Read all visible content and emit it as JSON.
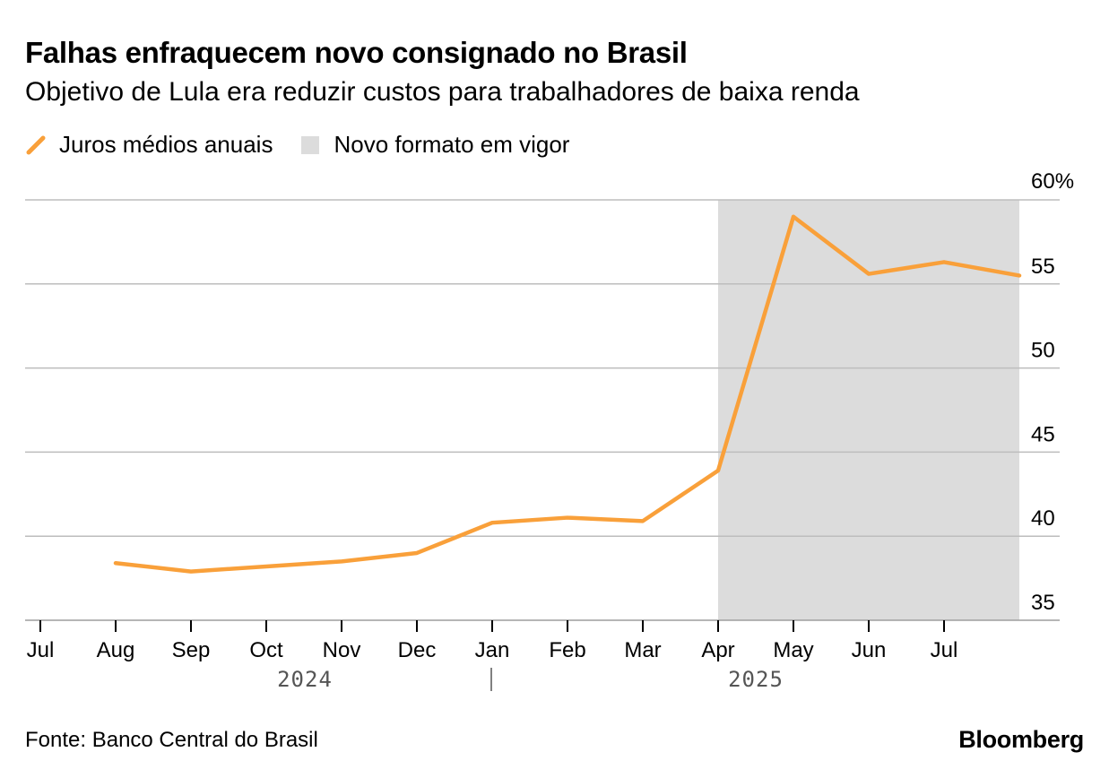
{
  "header": {
    "title": "Falhas enfraquecem novo consignado no Brasil",
    "subtitle": "Objetivo de Lula era reduzir custos para trabalhadores de baixa renda"
  },
  "legend": {
    "line_label": "Juros médios anuais",
    "shade_label": "Novo formato em vigor"
  },
  "footer": {
    "source": "Fonte: Banco Central do Brasil",
    "brand": "Bloomberg"
  },
  "colors": {
    "line": "#f9a03a",
    "shade": "#dcdcdc",
    "grid": "#bdbdbd"
  },
  "chart_data": {
    "type": "line",
    "title": "Falhas enfraquecem novo consignado no Brasil",
    "subtitle": "Objetivo de Lula era reduzir custos para trabalhadores de baixa renda",
    "xlabel": "",
    "ylabel": "",
    "ylim": [
      35,
      60
    ],
    "y_ticks": [
      35,
      40,
      45,
      50,
      55,
      60
    ],
    "y_tick_labels": [
      "35",
      "40",
      "45",
      "50",
      "55",
      "60%"
    ],
    "x_tick_labels": [
      "Jul",
      "Aug",
      "Sep",
      "Oct",
      "Nov",
      "Dec",
      "Jan",
      "Feb",
      "Mar",
      "Apr",
      "May",
      "Jun",
      "Jul"
    ],
    "year_labels": [
      "2024",
      "2025"
    ],
    "grid": true,
    "legend_position": "top-left",
    "series": [
      {
        "name": "Juros médios anuais",
        "x": [
          "2024-08-01",
          "2024-09-01",
          "2024-10-01",
          "2024-11-01",
          "2024-12-01",
          "2025-01-01",
          "2025-02-01",
          "2025-03-01",
          "2025-04-01",
          "2025-05-01",
          "2025-06-01",
          "2025-07-01",
          "2025-08-01"
        ],
        "values": [
          38.4,
          37.9,
          38.2,
          38.5,
          39.0,
          40.8,
          41.1,
          40.9,
          43.9,
          59.0,
          55.6,
          56.3,
          55.5
        ]
      }
    ],
    "shaded_range": {
      "label": "Novo formato em vigor",
      "start": "2025-04-01",
      "end": "2025-08-01"
    }
  }
}
